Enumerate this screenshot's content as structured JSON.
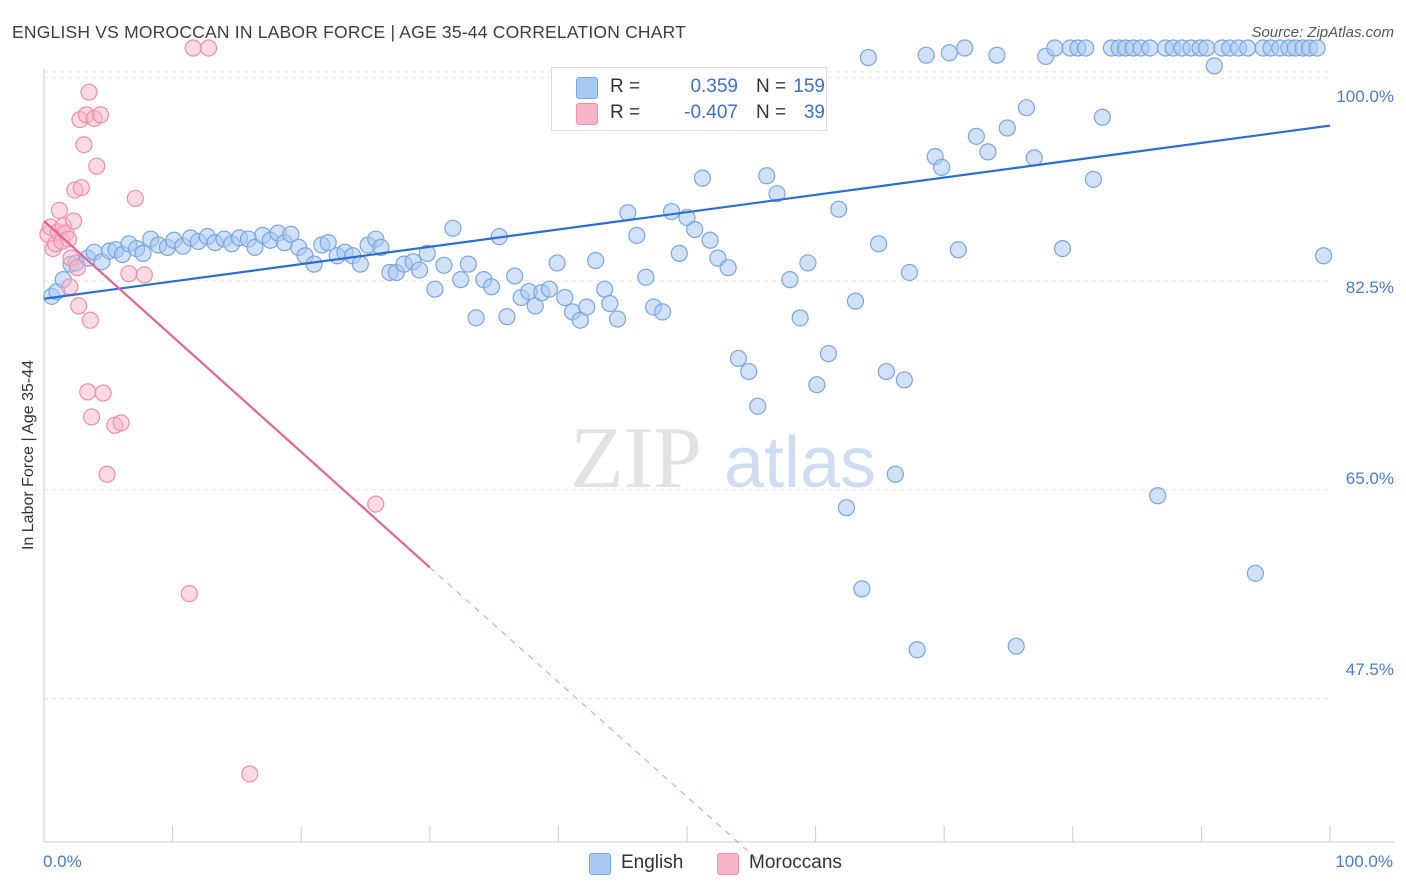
{
  "title": "ENGLISH VS MOROCCAN IN LABOR FORCE | AGE 35-44 CORRELATION CHART",
  "source": "Source: ZipAtlas.com",
  "watermark": {
    "zip": "ZIP",
    "atlas": "atlas"
  },
  "colors": {
    "english_fill": "#a9c8f2",
    "english_stroke": "#7aa6e0",
    "english_line": "#2a6fd0",
    "moroccan_fill": "#f7b6c8",
    "moroccan_stroke": "#ee8fab",
    "moroccan_line": "#e26593",
    "tick_label": "#4a7cc9",
    "grid": "#e3e3e3"
  },
  "legend": {
    "rows": [
      {
        "r_label": "R =",
        "r_value": "0.359",
        "n_label": "N =",
        "n_value": "159"
      },
      {
        "r_label": "R =",
        "r_value": "-0.407",
        "n_label": "N =",
        "n_value": "39"
      }
    ]
  },
  "bottom_legend": [
    "English",
    "Moroccans"
  ],
  "chart_data": {
    "type": "scatter",
    "title": "ENGLISH VS MOROCCAN IN LABOR FORCE | AGE 35-44 CORRELATION CHART",
    "xlabel": "",
    "ylabel": "In Labor Force | Age 35-44",
    "xlim": [
      0,
      100
    ],
    "ylim": [
      35.5,
      102
    ],
    "x_tick_labels": [
      "0.0%",
      "100.0%"
    ],
    "y_ticks": [
      47.5,
      65.0,
      82.5,
      100.0
    ],
    "y_tick_labels": [
      "47.5%",
      "65.0%",
      "82.5%",
      "100.0%"
    ],
    "grid": true,
    "legend_position": "top-center",
    "series": [
      {
        "name": "English",
        "r": 0.359,
        "n": 159,
        "trend": {
          "x": [
            0,
            100
          ],
          "y": [
            81.0,
            95.5
          ]
        },
        "points": [
          [
            0.6,
            81.2
          ],
          [
            1.0,
            81.6
          ],
          [
            1.5,
            82.6
          ],
          [
            2.1,
            83.9
          ],
          [
            2.5,
            84.0
          ],
          [
            3.4,
            84.4
          ],
          [
            3.9,
            84.9
          ],
          [
            4.5,
            84.1
          ],
          [
            5.1,
            85.0
          ],
          [
            5.6,
            85.1
          ],
          [
            6.1,
            84.7
          ],
          [
            6.6,
            85.6
          ],
          [
            7.2,
            85.2
          ],
          [
            7.7,
            84.8
          ],
          [
            8.3,
            86.0
          ],
          [
            8.9,
            85.5
          ],
          [
            9.6,
            85.3
          ],
          [
            10.1,
            85.9
          ],
          [
            10.8,
            85.4
          ],
          [
            11.4,
            86.1
          ],
          [
            12.0,
            85.8
          ],
          [
            12.7,
            86.2
          ],
          [
            13.3,
            85.7
          ],
          [
            14.0,
            86.0
          ],
          [
            14.6,
            85.6
          ],
          [
            15.2,
            86.1
          ],
          [
            15.9,
            86.0
          ],
          [
            16.4,
            85.3
          ],
          [
            17.0,
            86.3
          ],
          [
            17.6,
            85.9
          ],
          [
            18.2,
            86.5
          ],
          [
            18.7,
            85.7
          ],
          [
            19.2,
            86.4
          ],
          [
            19.8,
            85.3
          ],
          [
            20.3,
            84.6
          ],
          [
            21.0,
            83.9
          ],
          [
            21.6,
            85.5
          ],
          [
            22.1,
            85.7
          ],
          [
            22.8,
            84.6
          ],
          [
            23.4,
            84.9
          ],
          [
            24.0,
            84.6
          ],
          [
            24.6,
            83.9
          ],
          [
            25.2,
            85.5
          ],
          [
            25.8,
            86.0
          ],
          [
            26.2,
            85.3
          ],
          [
            26.9,
            83.2
          ],
          [
            27.4,
            83.2
          ],
          [
            28.0,
            83.9
          ],
          [
            28.7,
            84.1
          ],
          [
            29.2,
            83.4
          ],
          [
            29.8,
            84.8
          ],
          [
            30.4,
            81.8
          ],
          [
            31.1,
            83.8
          ],
          [
            31.8,
            86.9
          ],
          [
            32.4,
            82.6
          ],
          [
            33.0,
            83.9
          ],
          [
            33.6,
            79.4
          ],
          [
            34.2,
            82.6
          ],
          [
            34.8,
            82.0
          ],
          [
            35.4,
            86.2
          ],
          [
            36.0,
            79.5
          ],
          [
            36.6,
            82.9
          ],
          [
            37.1,
            81.1
          ],
          [
            37.7,
            81.6
          ],
          [
            38.2,
            80.4
          ],
          [
            38.7,
            81.5
          ],
          [
            39.3,
            81.8
          ],
          [
            39.9,
            84.0
          ],
          [
            40.5,
            81.1
          ],
          [
            41.1,
            79.9
          ],
          [
            41.7,
            79.2
          ],
          [
            42.2,
            80.3
          ],
          [
            42.9,
            84.2
          ],
          [
            43.6,
            81.8
          ],
          [
            44.0,
            80.6
          ],
          [
            44.6,
            79.3
          ],
          [
            45.4,
            88.2
          ],
          [
            46.1,
            86.3
          ],
          [
            46.8,
            82.8
          ],
          [
            47.4,
            80.3
          ],
          [
            48.1,
            79.9
          ],
          [
            48.8,
            88.3
          ],
          [
            49.4,
            84.8
          ],
          [
            50.0,
            87.8
          ],
          [
            50.6,
            86.8
          ],
          [
            51.2,
            91.1
          ],
          [
            51.8,
            85.9
          ],
          [
            52.4,
            84.4
          ],
          [
            53.2,
            83.6
          ],
          [
            54.0,
            76.0
          ],
          [
            54.8,
            74.9
          ],
          [
            55.5,
            72.0
          ],
          [
            56.2,
            91.3
          ],
          [
            57.0,
            89.8
          ],
          [
            58.0,
            82.6
          ],
          [
            58.8,
            79.4
          ],
          [
            59.4,
            84.0
          ],
          [
            60.1,
            73.8
          ],
          [
            61.0,
            76.4
          ],
          [
            61.8,
            88.5
          ],
          [
            62.4,
            63.5
          ],
          [
            63.1,
            80.8
          ],
          [
            63.6,
            56.7
          ],
          [
            64.1,
            101.2
          ],
          [
            64.9,
            85.6
          ],
          [
            65.5,
            74.9
          ],
          [
            66.2,
            66.3
          ],
          [
            66.9,
            74.2
          ],
          [
            67.3,
            83.2
          ],
          [
            67.9,
            51.6
          ],
          [
            68.6,
            101.4
          ],
          [
            69.3,
            92.9
          ],
          [
            69.8,
            92.0
          ],
          [
            70.4,
            101.6
          ],
          [
            71.1,
            85.1
          ],
          [
            71.6,
            102.0
          ],
          [
            72.5,
            94.6
          ],
          [
            73.4,
            93.3
          ],
          [
            74.1,
            101.4
          ],
          [
            74.9,
            95.3
          ],
          [
            75.6,
            51.9
          ],
          [
            76.4,
            97.0
          ],
          [
            77.0,
            92.8
          ],
          [
            77.9,
            101.3
          ],
          [
            78.6,
            102.0
          ],
          [
            79.2,
            85.2
          ],
          [
            79.8,
            102.0
          ],
          [
            80.4,
            102.0
          ],
          [
            81.0,
            102.0
          ],
          [
            81.6,
            91.0
          ],
          [
            82.3,
            96.2
          ],
          [
            83.0,
            102.0
          ],
          [
            83.6,
            102.0
          ],
          [
            84.1,
            102.0
          ],
          [
            84.7,
            102.0
          ],
          [
            85.3,
            102.0
          ],
          [
            86.0,
            102.0
          ],
          [
            86.6,
            64.5
          ],
          [
            87.2,
            102.0
          ],
          [
            87.8,
            102.0
          ],
          [
            88.5,
            102.0
          ],
          [
            89.2,
            102.0
          ],
          [
            89.9,
            102.0
          ],
          [
            90.4,
            102.0
          ],
          [
            91.0,
            100.5
          ],
          [
            91.6,
            102.0
          ],
          [
            92.2,
            102.0
          ],
          [
            92.9,
            102.0
          ],
          [
            93.6,
            102.0
          ],
          [
            94.2,
            58.0
          ],
          [
            94.8,
            102.0
          ],
          [
            95.4,
            102.0
          ],
          [
            96.1,
            102.0
          ],
          [
            96.8,
            102.0
          ],
          [
            97.3,
            102.0
          ],
          [
            97.9,
            102.0
          ],
          [
            98.4,
            102.0
          ],
          [
            99.0,
            102.0
          ],
          [
            99.5,
            84.6
          ]
        ]
      },
      {
        "name": "Moroccans",
        "r": -0.407,
        "n": 39,
        "trend": {
          "x": [
            0,
            30
          ],
          "y": [
            87.5,
            58.5
          ]
        },
        "trend_dashed": {
          "x": [
            30,
            55.5
          ],
          "y": [
            58.5,
            34.0
          ]
        },
        "points": [
          [
            0.3,
            86.4
          ],
          [
            0.5,
            87.0
          ],
          [
            0.7,
            85.2
          ],
          [
            0.9,
            85.6
          ],
          [
            1.1,
            86.6
          ],
          [
            1.2,
            88.4
          ],
          [
            1.4,
            85.8
          ],
          [
            1.5,
            87.1
          ],
          [
            1.7,
            86.5
          ],
          [
            1.9,
            86.0
          ],
          [
            2.0,
            82.0
          ],
          [
            2.1,
            84.4
          ],
          [
            2.3,
            87.5
          ],
          [
            2.4,
            90.1
          ],
          [
            2.6,
            83.6
          ],
          [
            2.7,
            80.4
          ],
          [
            2.8,
            96.0
          ],
          [
            2.9,
            90.3
          ],
          [
            3.1,
            93.9
          ],
          [
            3.3,
            96.4
          ],
          [
            3.4,
            73.2
          ],
          [
            3.5,
            98.3
          ],
          [
            3.6,
            79.2
          ],
          [
            3.7,
            71.1
          ],
          [
            3.9,
            96.1
          ],
          [
            4.1,
            92.1
          ],
          [
            4.4,
            96.4
          ],
          [
            4.6,
            73.1
          ],
          [
            4.9,
            66.3
          ],
          [
            5.5,
            70.4
          ],
          [
            6.0,
            70.6
          ],
          [
            6.6,
            83.1
          ],
          [
            7.1,
            89.4
          ],
          [
            7.8,
            83.0
          ],
          [
            11.3,
            56.3
          ],
          [
            11.6,
            102.0
          ],
          [
            12.8,
            102.0
          ],
          [
            16.0,
            41.2
          ],
          [
            25.8,
            63.8
          ]
        ]
      }
    ]
  }
}
